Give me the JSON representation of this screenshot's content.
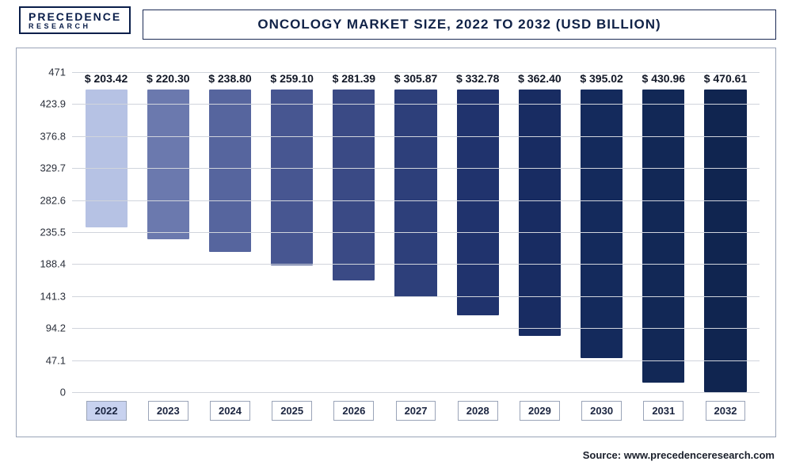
{
  "logo": {
    "line1": "PRECEDENCE",
    "line2": "RESEARCH"
  },
  "title": "ONCOLOGY MARKET SIZE, 2022 TO 2032 (USD BILLION)",
  "source": "Source: www.precedenceresearch.com",
  "chart": {
    "type": "bar",
    "ylim": [
      0,
      471
    ],
    "yticks": [
      0,
      47.1,
      94.2,
      141.3,
      188.4,
      235.5,
      282.6,
      329.7,
      376.8,
      423.9,
      471
    ],
    "ytick_labels": [
      "0",
      "47.1",
      "94.2",
      "141.3",
      "188.4",
      "235.5",
      "282.6",
      "329.7",
      "376.8",
      "423.9",
      "471"
    ],
    "background_color": "#ffffff",
    "grid_color": "#d0d4dc",
    "axis_font_color": "#2a2f3a",
    "label_fontsize": 13,
    "value_fontsize": 14,
    "title_fontsize": 17,
    "value_prefix": "$ ",
    "bar_width_pct": 68,
    "highlight_year": "2022",
    "value_color": "#111726",
    "xtick_border_color": "#9aa4b8",
    "xtick_bg": "#ffffff",
    "xtick_highlight_bg": "#c8d2ef",
    "categories": [
      "2022",
      "2023",
      "2024",
      "2025",
      "2026",
      "2027",
      "2028",
      "2029",
      "2030",
      "2031",
      "2032"
    ],
    "values": [
      203.42,
      220.3,
      238.8,
      259.1,
      281.39,
      305.87,
      332.78,
      362.4,
      395.02,
      430.96,
      470.61
    ],
    "value_labels": [
      "$ 203.42",
      "$ 220.30",
      "$ 238.80",
      "$ 259.10",
      "$ 281.39",
      "$ 305.87",
      "$ 332.78",
      "$ 362.40",
      "$ 395.02",
      "$ 430.96",
      "$ 470.61"
    ],
    "bar_colors": [
      "#b6c2e4",
      "#6b79ae",
      "#56659e",
      "#475691",
      "#3a4a85",
      "#2d3f7a",
      "#20336d",
      "#182c62",
      "#142a5c",
      "#122856",
      "#102550"
    ]
  }
}
